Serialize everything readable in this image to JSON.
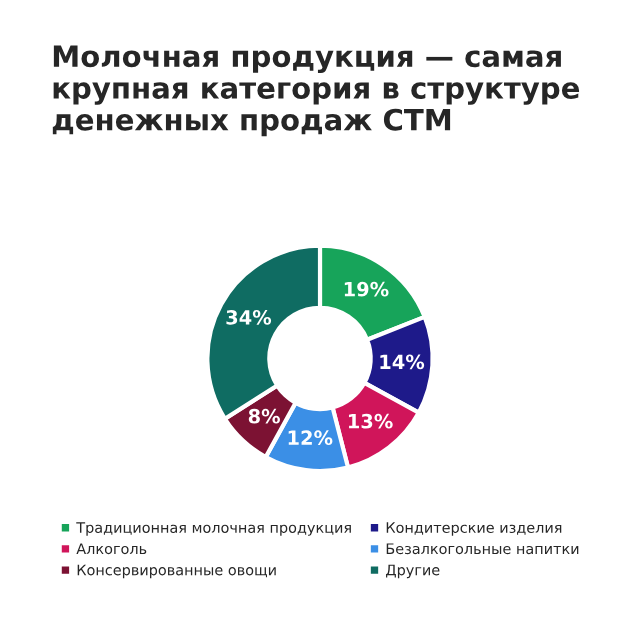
{
  "chart_data": {
    "type": "donut",
    "title": "Молочная продукция — самая крупная категория в структуре денежных продаж СТМ",
    "categories": [
      "Традиционная молочная продукция",
      "Кондитерские изделия",
      "Алкоголь",
      "Безалкогольные напитки",
      "Консервированные овощи",
      "Другие"
    ],
    "values": [
      19,
      14,
      13,
      12,
      8,
      34
    ],
    "colors": [
      "#17a45a",
      "#1e1a8a",
      "#d0155a",
      "#3b8fe6",
      "#7c1233",
      "#0f6c62"
    ],
    "value_labels": [
      "19%",
      "14%",
      "13%",
      "12%",
      "8%",
      "34%"
    ],
    "legend": "bottom"
  }
}
